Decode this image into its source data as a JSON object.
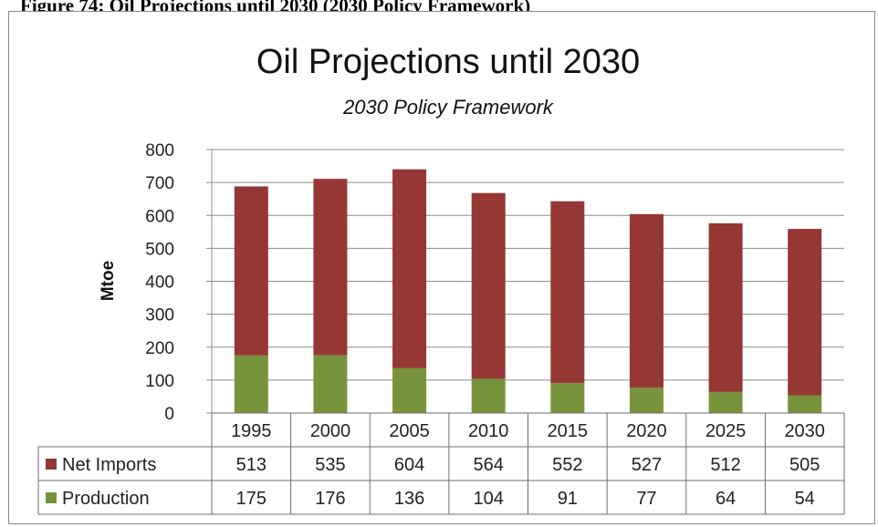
{
  "figure_caption": "Figure 74: Oil Projections until 2030 (2030 Policy Framework)",
  "chart_data": {
    "type": "bar",
    "stacked": true,
    "title": "Oil Projections until 2030",
    "subtitle": "2030 Policy Framework",
    "xlabel": "",
    "ylabel": "Mtoe",
    "ylim": [
      0,
      800
    ],
    "yticks": [
      0,
      100,
      200,
      300,
      400,
      500,
      600,
      700,
      800
    ],
    "grid": true,
    "legend": "data-table",
    "categories": [
      "1995",
      "2000",
      "2005",
      "2010",
      "2015",
      "2020",
      "2025",
      "2030"
    ],
    "series": [
      {
        "name": "Production",
        "color": "#77933c",
        "values": [
          175,
          176,
          136,
          104,
          91,
          77,
          64,
          54
        ]
      },
      {
        "name": "Net Imports",
        "color": "#953735",
        "values": [
          513,
          535,
          604,
          564,
          552,
          527,
          512,
          505
        ]
      }
    ],
    "table_rows": [
      "Net Imports",
      "Production"
    ]
  }
}
